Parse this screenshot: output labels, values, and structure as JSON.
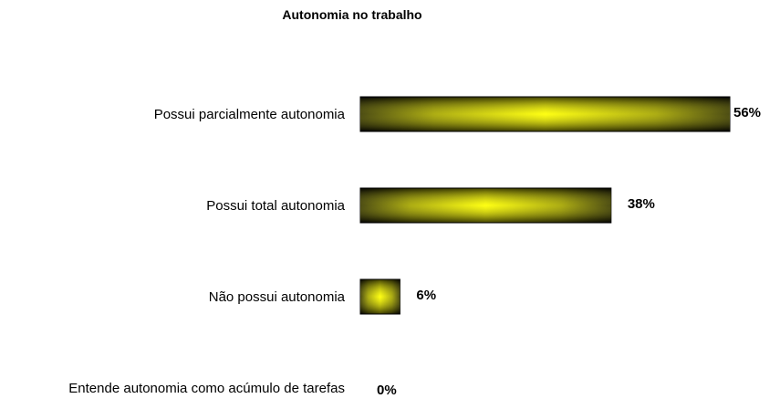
{
  "chart_data": {
    "type": "bar",
    "orientation": "horizontal",
    "title": "Autonomia no trabalho",
    "categories": [
      "Possui parcialmente autonomia",
      "Possui total autonomia",
      "Não possui autonomia",
      "Entende autonomia como acúmulo de tarefas"
    ],
    "values": [
      56,
      38,
      6,
      0
    ],
    "value_labels": [
      "56%",
      "38%",
      "6%",
      "0%"
    ],
    "color": "#ffff00"
  }
}
